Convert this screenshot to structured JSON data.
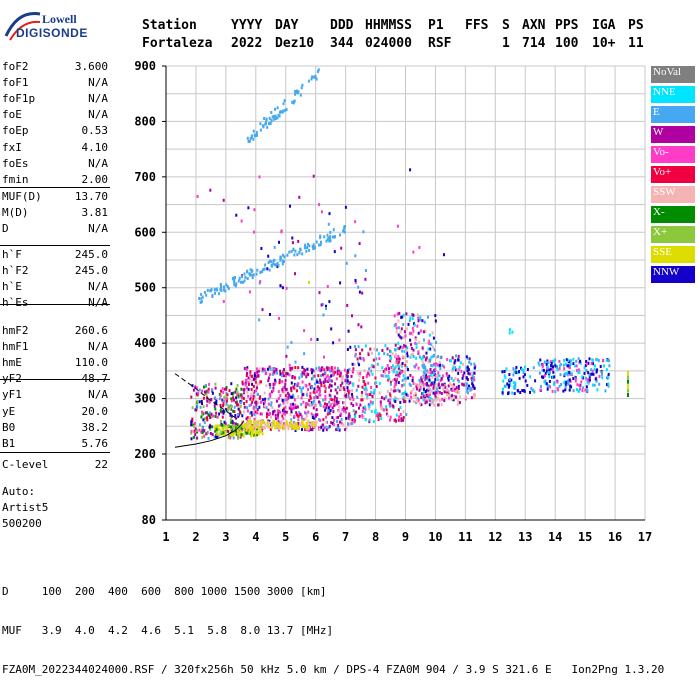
{
  "logo": {
    "line1": "Lowell",
    "line2": "DIGISONDE"
  },
  "header": {
    "labels": [
      "Station",
      "YYYY",
      "DAY",
      "DDD",
      "HHMMSS",
      "P1",
      "FFS",
      "S",
      "AXN",
      "PPS",
      "IGA",
      "PS"
    ],
    "values": [
      "Fortaleza",
      "2022",
      "Dez10",
      "344",
      "024000",
      "RSF",
      "1",
      "714",
      "100",
      "10+",
      "11"
    ]
  },
  "params": [
    {
      "k": "foF2",
      "v": "3.600"
    },
    {
      "k": "foF1",
      "v": "N/A"
    },
    {
      "k": "foF1p",
      "v": "N/A"
    },
    {
      "k": "foE",
      "v": "N/A"
    },
    {
      "k": "foEp",
      "v": "0.53"
    },
    {
      "k": "fxI",
      "v": "4.10"
    },
    {
      "k": "foEs",
      "v": "N/A"
    },
    {
      "k": "fmin",
      "v": "2.00"
    },
    {
      "k": "MUF(D)",
      "v": "13.70"
    },
    {
      "k": "M(D)",
      "v": "3.81"
    },
    {
      "k": "D",
      "v": "N/A"
    },
    {
      "k": "h`F",
      "v": "245.0"
    },
    {
      "k": "h`F2",
      "v": "245.0"
    },
    {
      "k": "h`E",
      "v": "N/A"
    },
    {
      "k": "h`Es",
      "v": "N/A"
    },
    {
      "k": "hmF2",
      "v": "260.6"
    },
    {
      "k": "hmF1",
      "v": "N/A"
    },
    {
      "k": "hmE",
      "v": "110.0"
    },
    {
      "k": "yF2",
      "v": "48.7"
    },
    {
      "k": "yF1",
      "v": "N/A"
    },
    {
      "k": "yE",
      "v": "20.0"
    },
    {
      "k": "B0",
      "v": "38.2"
    },
    {
      "k": "B1",
      "v": "5.76"
    },
    {
      "k": "C-level",
      "v": "22"
    }
  ],
  "auto": [
    "Auto:",
    "Artist5",
    "500200"
  ],
  "legend": [
    {
      "label": "NoVal",
      "color": "#7f7f7f"
    },
    {
      "label": "NNE",
      "color": "#00e5ff"
    },
    {
      "label": "E",
      "color": "#46a8f0"
    },
    {
      "label": "W",
      "color": "#b000a0"
    },
    {
      "label": "Vo-",
      "color": "#ff3cc8"
    },
    {
      "label": "Vo+",
      "color": "#f00040"
    },
    {
      "label": "SSW",
      "color": "#f5b4b4"
    },
    {
      "label": "X-",
      "color": "#008c00"
    },
    {
      "label": "X+",
      "color": "#8cc83c"
    },
    {
      "label": "SSE",
      "color": "#dcdc00"
    },
    {
      "label": "NNW",
      "color": "#1400c8"
    }
  ],
  "bottom": {
    "d_row": "D     100  200  400  600  800 1000 1500 3000 [km]",
    "muf_row": "MUF   3.9  4.0  4.2  4.6  5.1  5.8  8.0 13.7 [MHz]",
    "info_row": "FZA0M_2022344024000.RSF / 320fx256h 50 kHz 5.0 km / DPS-4 FZA0M 904 / 3.9 S 321.6 E   Ion2Png 1.3.20"
  },
  "chart_data": {
    "type": "scatter",
    "x_ticks": [
      "1",
      "2",
      "3",
      "4",
      "5",
      "6",
      "7",
      "8",
      "9",
      "10",
      "11",
      "12",
      "13",
      "14",
      "15",
      "16",
      "17"
    ],
    "y_ticks": [
      "80",
      "200",
      "300",
      "400",
      "500",
      "600",
      "700",
      "800",
      "900"
    ],
    "xlim": [
      1,
      17
    ],
    "ylim_labels": [
      80,
      900
    ],
    "grid": true,
    "profile_curve": [
      [
        1.3,
        212
      ],
      [
        2.0,
        218
      ],
      [
        2.5,
        224
      ],
      [
        3.0,
        233
      ],
      [
        3.3,
        242
      ],
      [
        3.5,
        252
      ],
      [
        3.6,
        260
      ]
    ],
    "dashed_trace": [
      [
        1.3,
        345
      ],
      [
        2.0,
        318
      ],
      [
        2.5,
        296
      ],
      [
        3.0,
        278
      ],
      [
        3.4,
        262
      ]
    ]
  }
}
